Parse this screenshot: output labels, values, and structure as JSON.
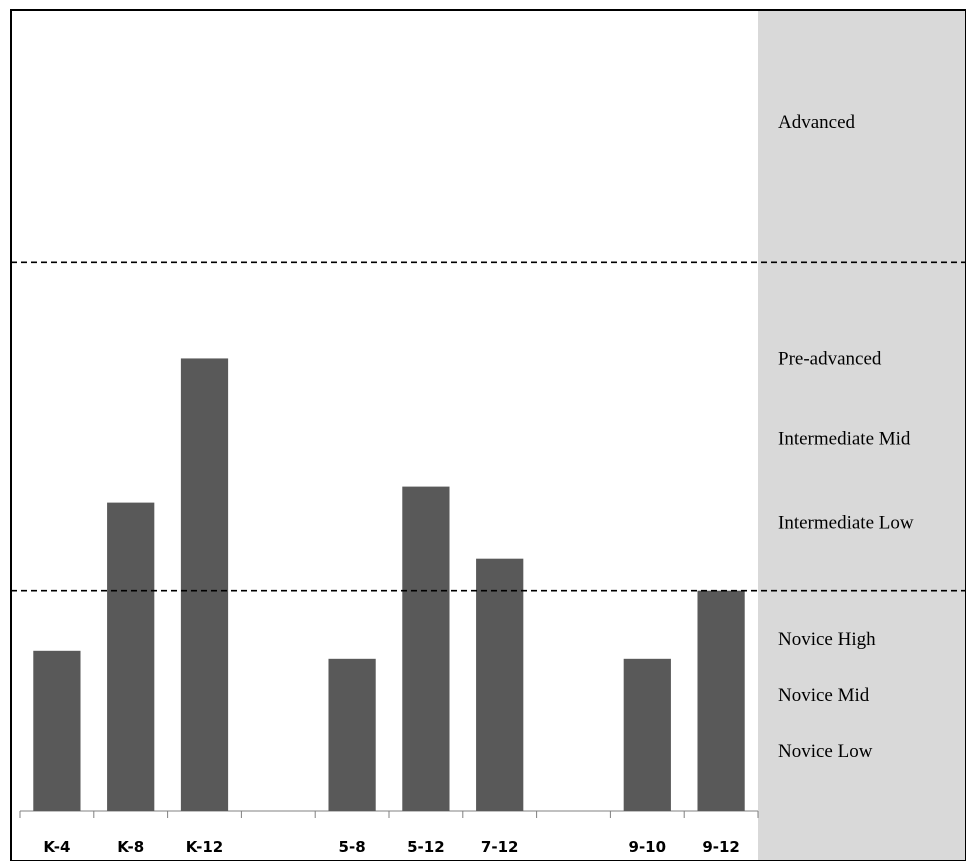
{
  "chart_data": {
    "type": "bar",
    "categories": [
      "K-4",
      "K-8",
      "K-12",
      "",
      "5-8",
      "5-12",
      "7-12",
      "",
      "9-10",
      "9-12"
    ],
    "values": [
      2.0,
      3.85,
      5.65,
      null,
      1.9,
      4.05,
      3.15,
      null,
      1.9,
      2.75
    ],
    "ylim": [
      0,
      10
    ],
    "bar_color": "#595959",
    "band_color": "#d9d9d9",
    "thresholds": [
      {
        "value": 2.75,
        "style": "dashed"
      },
      {
        "value": 6.85,
        "style": "dashed"
      }
    ],
    "levels": [
      {
        "label": "Advanced",
        "value": 8.6
      },
      {
        "label": "Pre-advanced",
        "value": 5.65
      },
      {
        "label": "Intermediate Mid",
        "value": 4.65
      },
      {
        "label": "Intermediate Low",
        "value": 3.6
      },
      {
        "label": "Novice High",
        "value": 2.15
      },
      {
        "label": "Novice Mid",
        "value": 1.45
      },
      {
        "label": "Novice Low",
        "value": 0.75
      }
    ],
    "legend": "none",
    "grid": false
  }
}
